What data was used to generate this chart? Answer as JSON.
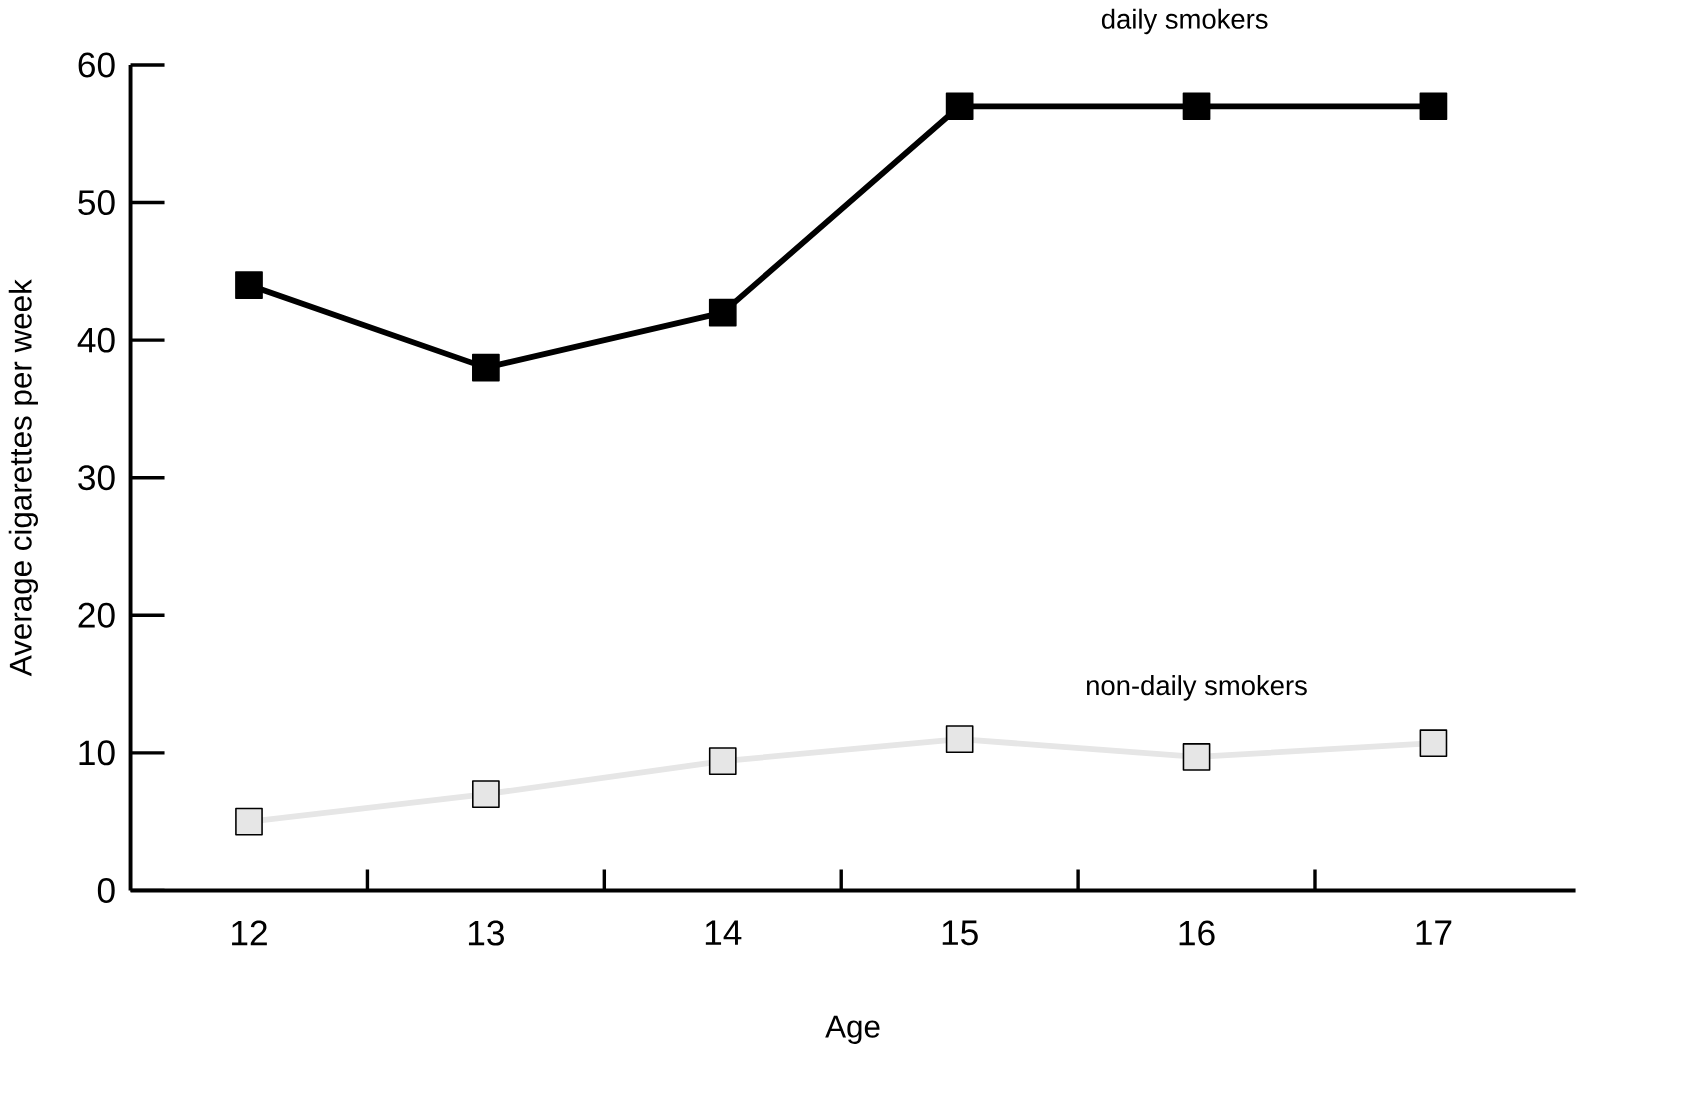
{
  "chart_data": {
    "type": "line",
    "xlabel": "Age",
    "ylabel": "Average cigarettes per week",
    "categories": [
      "12",
      "13",
      "14",
      "15",
      "16",
      "17"
    ],
    "series": [
      {
        "name": "daily smokers",
        "color": "#000000",
        "values": [
          44,
          38,
          42,
          57,
          57,
          57
        ]
      },
      {
        "name": "non-daily smokers",
        "color": "#e6e6e6",
        "values": [
          5,
          7,
          9.4,
          11,
          9.7,
          10.7
        ]
      }
    ],
    "ylim": [
      0,
      60
    ],
    "yticks": [
      0,
      10,
      20,
      30,
      40,
      50,
      60
    ],
    "grid": false,
    "marker": "square",
    "line_style": "solid"
  }
}
